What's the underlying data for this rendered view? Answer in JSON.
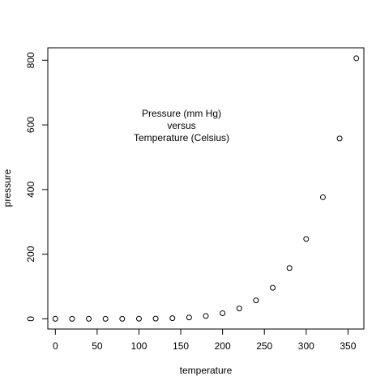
{
  "chart_data": {
    "type": "scatter",
    "xlabel": "temperature",
    "ylabel": "pressure",
    "annotation_lines": [
      "Pressure (mm Hg)",
      "versus",
      "Temperature (Celsius)"
    ],
    "xlim": [
      -9,
      369
    ],
    "ylim": [
      -31.6,
      838.4
    ],
    "x_ticks": [
      0,
      50,
      100,
      150,
      200,
      250,
      300,
      350
    ],
    "y_ticks": [
      0,
      200,
      400,
      600,
      800
    ],
    "grid": false,
    "marker": "open-circle",
    "points": [
      {
        "x": 0,
        "y": 0.0002
      },
      {
        "x": 20,
        "y": 0.0012
      },
      {
        "x": 40,
        "y": 0.006
      },
      {
        "x": 60,
        "y": 0.03
      },
      {
        "x": 80,
        "y": 0.09
      },
      {
        "x": 100,
        "y": 0.27
      },
      {
        "x": 120,
        "y": 0.75
      },
      {
        "x": 140,
        "y": 1.85
      },
      {
        "x": 160,
        "y": 4.2
      },
      {
        "x": 180,
        "y": 8.8
      },
      {
        "x": 200,
        "y": 17.3
      },
      {
        "x": 220,
        "y": 32.1
      },
      {
        "x": 240,
        "y": 57
      },
      {
        "x": 260,
        "y": 96
      },
      {
        "x": 280,
        "y": 157
      },
      {
        "x": 300,
        "y": 247
      },
      {
        "x": 320,
        "y": 376
      },
      {
        "x": 340,
        "y": 558
      },
      {
        "x": 360,
        "y": 806
      }
    ]
  }
}
